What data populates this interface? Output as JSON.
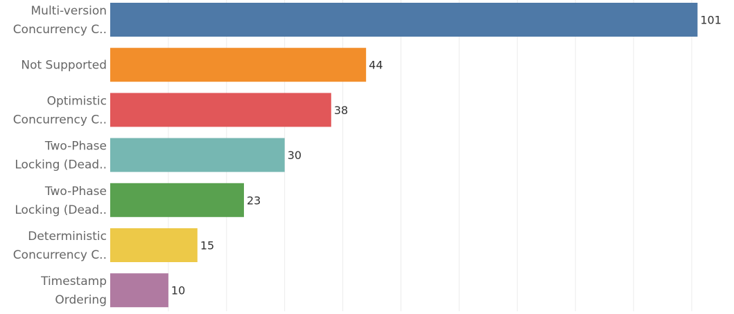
{
  "chart_data": {
    "type": "bar",
    "orientation": "horizontal",
    "title": "",
    "xlabel": "",
    "ylabel": "",
    "categories": [
      [
        "Multi-version",
        "Concurrency C.."
      ],
      [
        "Not Supported"
      ],
      [
        "Optimistic",
        "Concurrency C.."
      ],
      [
        "Two-Phase",
        "Locking (Dead.."
      ],
      [
        "Two-Phase",
        "Locking (Dead.."
      ],
      [
        "Deterministic",
        "Concurrency C.."
      ],
      [
        "Timestamp",
        "Ordering"
      ]
    ],
    "values": [
      101,
      44,
      38,
      30,
      23,
      15,
      10
    ],
    "colors": [
      "#4e79a7",
      "#f28e2b",
      "#e15759",
      "#76b7b2",
      "#59a14f",
      "#edc948",
      "#b07aa1"
    ],
    "xlim": [
      0,
      105
    ],
    "grid": true,
    "legend": "none"
  }
}
